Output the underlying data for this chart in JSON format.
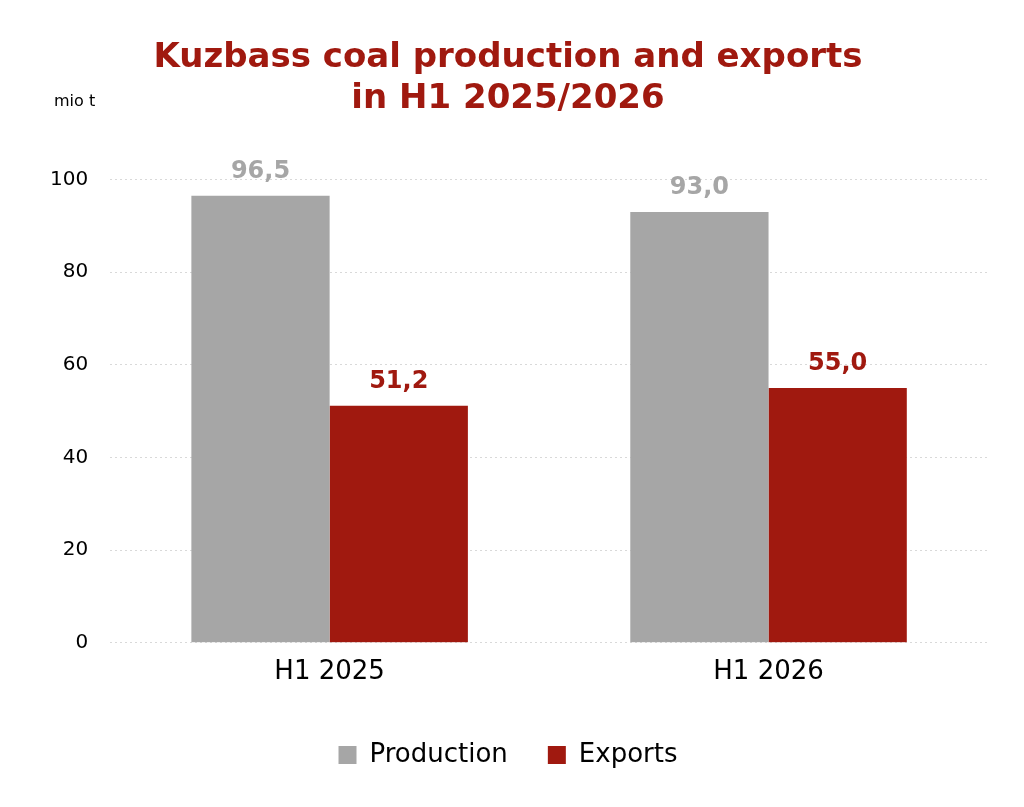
{
  "chart_data": {
    "type": "bar",
    "title": "Kuzbass coal production and exports\nin H1 2025/2026",
    "ylabel": "mio t",
    "categories": [
      "H1 2025",
      "H1 2026"
    ],
    "series": [
      {
        "name": "Production",
        "color": "#a6a6a6",
        "values": [
          96.5,
          93.0
        ],
        "value_labels": [
          "96,5",
          "93,0"
        ]
      },
      {
        "name": "Exports",
        "color": "#a0190f",
        "values": [
          51.2,
          55.0
        ],
        "value_labels": [
          "51,2",
          "55,0"
        ]
      }
    ],
    "ylim": [
      0,
      100
    ],
    "yticks": [
      0,
      20,
      40,
      60,
      80,
      100
    ],
    "grid": "y",
    "legend": "bottom"
  }
}
